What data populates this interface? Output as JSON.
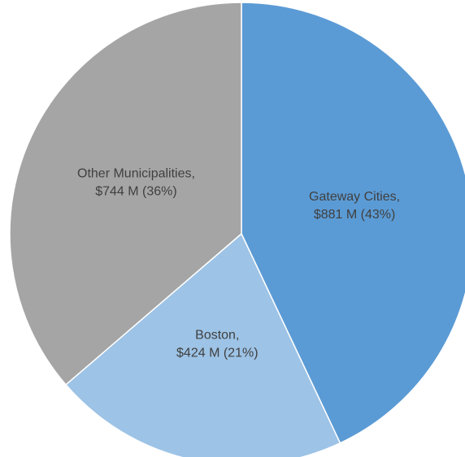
{
  "chart_data": {
    "type": "pie",
    "categories": [
      "Gateway Cities,",
      "Boston,",
      "Other Municipalities,"
    ],
    "values": [
      881,
      424,
      744
    ],
    "value_labels": [
      "$881 M (43%)",
      "$424 M (21%)",
      "$744 M (36%)"
    ],
    "colors": [
      "#5b9bd5",
      "#9dc3e6",
      "#a5a5a5"
    ]
  }
}
